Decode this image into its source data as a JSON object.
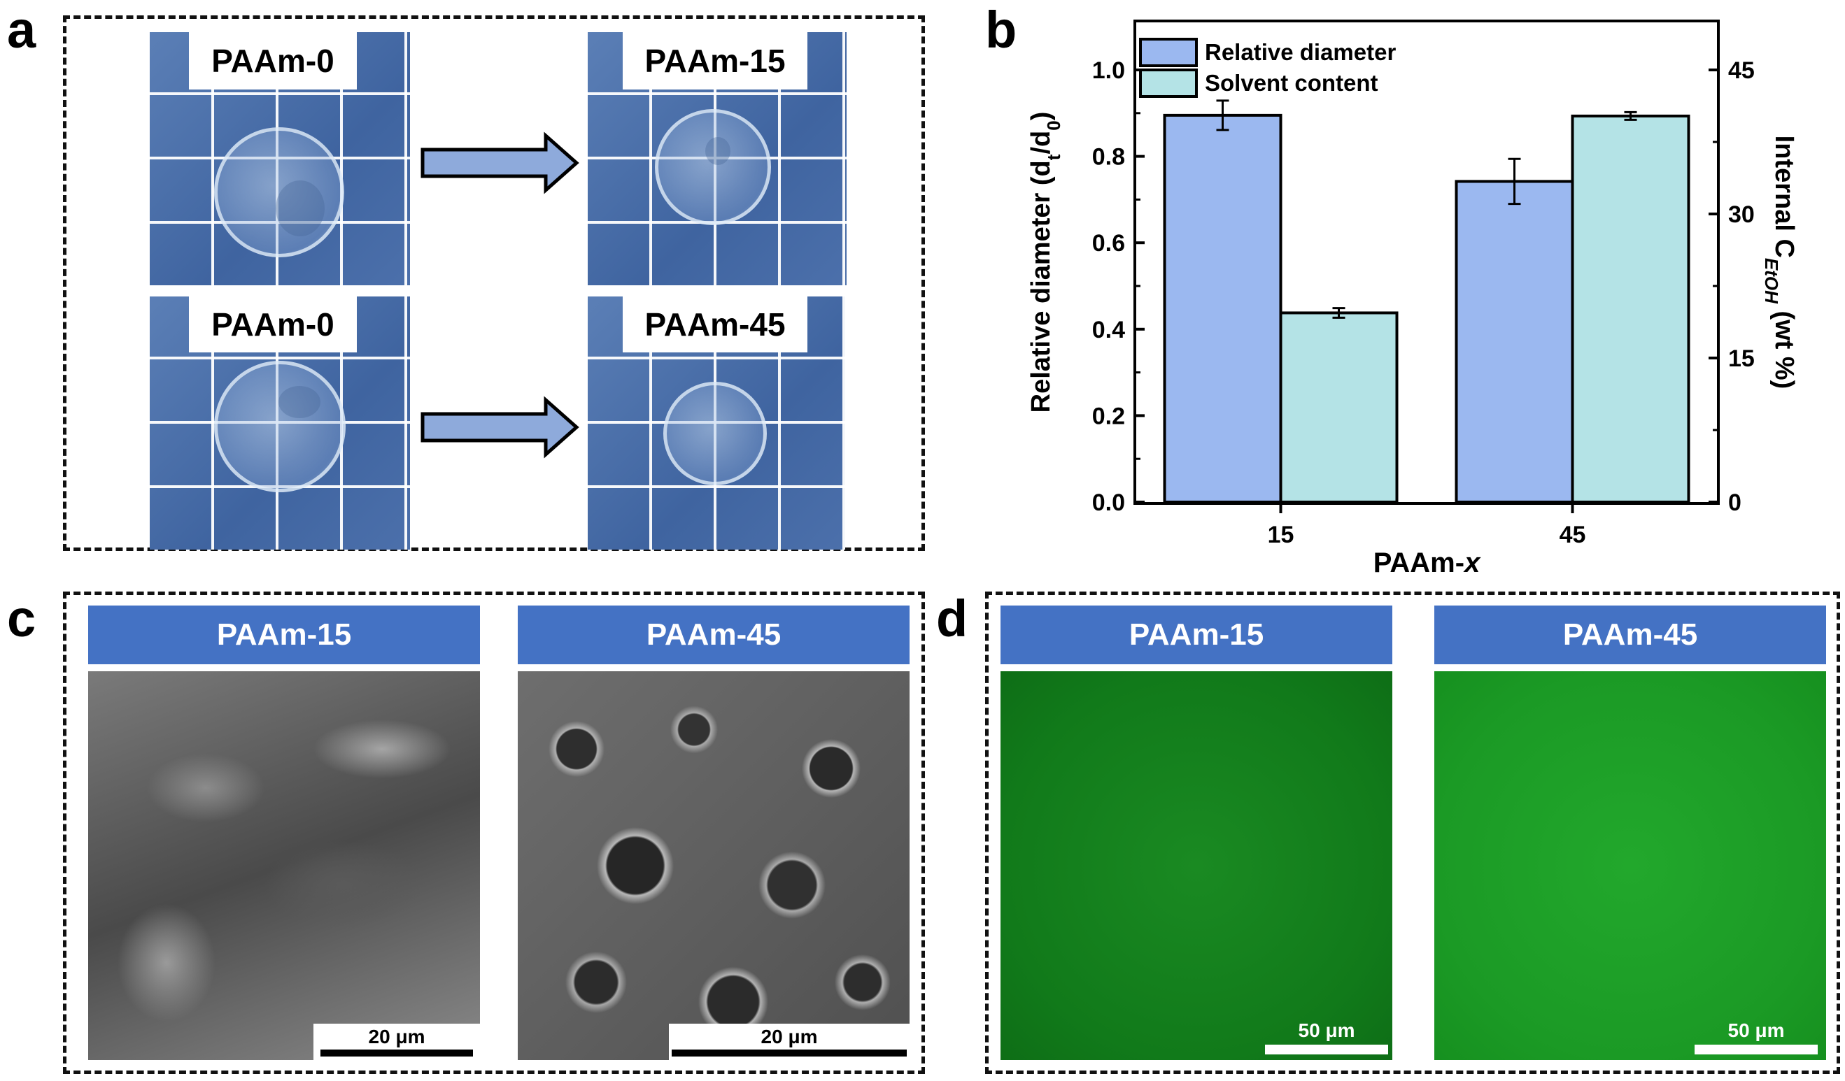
{
  "panels": {
    "a": {
      "letter": "a",
      "photos": [
        {
          "label": "PAAm-0"
        },
        {
          "label": "PAAm-15"
        },
        {
          "label": "PAAm-0"
        },
        {
          "label": "PAAm-45"
        }
      ]
    },
    "b": {
      "letter": "b"
    },
    "c": {
      "letter": "c",
      "images": [
        {
          "label": "PAAm-15",
          "scale": "20 μm"
        },
        {
          "label": "PAAm-45",
          "scale": "20 μm"
        }
      ]
    },
    "d": {
      "letter": "d",
      "images": [
        {
          "label": "PAAm-15",
          "scale": "50 μm"
        },
        {
          "label": "PAAm-45",
          "scale": "50 μm"
        }
      ]
    }
  },
  "chart_data": {
    "type": "bar",
    "categories": [
      "15",
      "45"
    ],
    "xlabel": "PAAm-x",
    "xlabel_prefix": "PAAm-",
    "xlabel_italic": "x",
    "ylabel": "Relative diameter (dt/d0)",
    "ylabel_main": "Relative diameter (d",
    "ylabel_sub1": "t",
    "ylabel_mid": "/d",
    "ylabel_sub2": "0",
    "ylabel_end": ")",
    "ylim": [
      0,
      1.0
    ],
    "yticks": [
      "0.0",
      "0.2",
      "0.4",
      "0.6",
      "0.8",
      "1.0"
    ],
    "ytick_values": [
      0,
      0.2,
      0.4,
      0.6,
      0.8,
      1.0
    ],
    "y2label": "Internal CEtOH (wt %)",
    "y2label_main": "Internal C",
    "y2label_sub": "EtOH",
    "y2label_end": " (wt %)",
    "y2lim": [
      0,
      45
    ],
    "y2ticks": [
      "0",
      "15",
      "30",
      "45"
    ],
    "y2tick_values": [
      0,
      15,
      30,
      45
    ],
    "series": [
      {
        "name": "Relative diameter",
        "axis": "left",
        "values": [
          0.895,
          0.742
        ],
        "errors": [
          0.034,
          0.052
        ],
        "color": "#9bb8f0"
      },
      {
        "name": "Solvent content",
        "axis": "right",
        "values": [
          19.7,
          40.2
        ],
        "errors": [
          0.5,
          0.4
        ],
        "color": "#b4e3e6"
      }
    ],
    "legend_position": "top-left",
    "grid": false
  }
}
